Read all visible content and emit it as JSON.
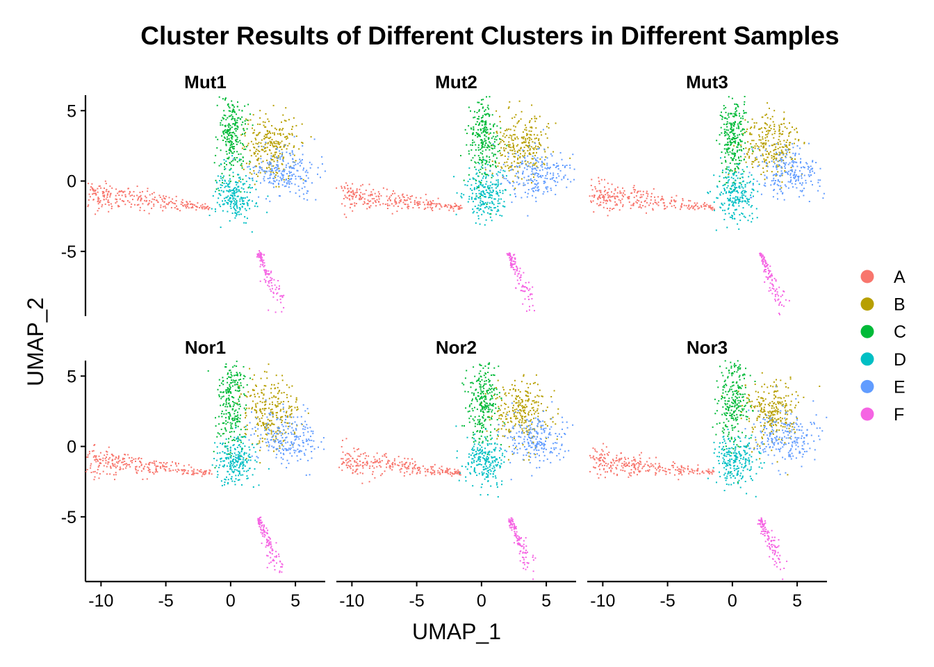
{
  "chart_data": {
    "type": "scatter",
    "title": "Cluster Results of Different Clusters in Different Samples",
    "xlabel": "UMAP_1",
    "ylabel": "UMAP_2",
    "xlim": [
      -11.2,
      7.3
    ],
    "ylim": [
      -9.6,
      6.1
    ],
    "x_ticks": [
      -10,
      -5,
      0,
      5
    ],
    "y_ticks": [
      5,
      0,
      -5
    ],
    "x_tick_labels": [
      "-10",
      "-5",
      "0",
      "5"
    ],
    "y_tick_labels": [
      "5",
      "0",
      "-5"
    ],
    "facet_layout": {
      "columns": 3,
      "rows": 2
    },
    "grid": false,
    "legend": {
      "position": "right",
      "marker": "circle"
    },
    "facets": [
      "Mut1",
      "Mut2",
      "Mut3",
      "Nor1",
      "Nor2",
      "Nor3"
    ],
    "series": [
      {
        "name": "A",
        "color": "#F8766D",
        "region": {
          "type": "tail",
          "x": [
            -10.5,
            -1.5
          ],
          "y": [
            -1.0,
            -1.9
          ],
          "spread_start": 0.55,
          "spread_end": 0.08
        }
      },
      {
        "name": "B",
        "color": "#B79F00",
        "region": {
          "type": "blob",
          "center": [
            3.0,
            2.5
          ],
          "spread": [
            1.1,
            1.2
          ]
        }
      },
      {
        "name": "C",
        "color": "#00BA38",
        "region": {
          "type": "blob",
          "center": [
            0.1,
            3.2
          ],
          "spread": [
            0.55,
            1.6
          ]
        }
      },
      {
        "name": "D",
        "color": "#00BFC4",
        "region": {
          "type": "blob",
          "center": [
            0.3,
            -1.0
          ],
          "spread": [
            0.8,
            0.9
          ]
        }
      },
      {
        "name": "E",
        "color": "#619CFF",
        "region": {
          "type": "blob",
          "center": [
            4.3,
            0.6
          ],
          "spread": [
            1.3,
            0.9
          ]
        }
      },
      {
        "name": "F",
        "color": "#F564E3",
        "region": {
          "type": "tail",
          "x": [
            2.2,
            3.8
          ],
          "y": [
            -5.2,
            -8.7
          ],
          "spread_start": 0.12,
          "spread_end": 0.4
        }
      }
    ]
  }
}
